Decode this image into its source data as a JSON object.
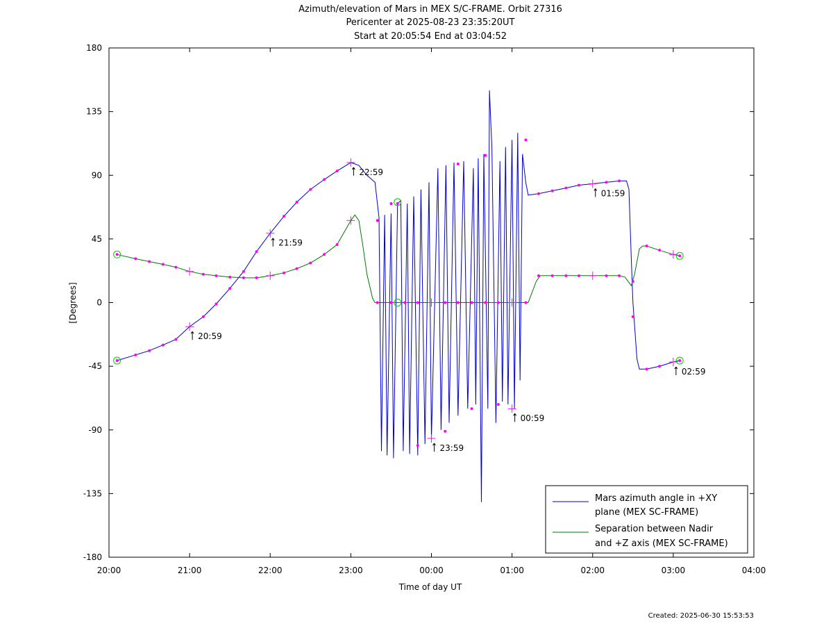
{
  "chart_data": {
    "type": "line",
    "title": "Azimuth/elevation of Mars in MEX S/C-FRAME.  Orbit 27316",
    "subtitle_lines": [
      "Pericenter at 2025-08-23 23:35:20UT",
      "Start at 20:05:54 End at 03:04:52"
    ],
    "xlabel": "Time of day UT",
    "ylabel": "[Degrees]",
    "footer": "Created: 2025-06-30 15:53:53",
    "x_unit": "hours since 20:00 UT",
    "xlim": [
      0,
      8
    ],
    "ylim": [
      -180,
      180
    ],
    "x_ticks": [
      {
        "v": 0,
        "label": "20:00"
      },
      {
        "v": 1,
        "label": "21:00"
      },
      {
        "v": 2,
        "label": "22:00"
      },
      {
        "v": 3,
        "label": "23:00"
      },
      {
        "v": 4,
        "label": "00:00"
      },
      {
        "v": 5,
        "label": "01:00"
      },
      {
        "v": 6,
        "label": "02:00"
      },
      {
        "v": 7,
        "label": "03:00"
      },
      {
        "v": 8,
        "label": "04:00"
      }
    ],
    "y_ticks": [
      {
        "v": 180,
        "label": "180"
      },
      {
        "v": 135,
        "label": "135"
      },
      {
        "v": 90,
        "label": "90"
      },
      {
        "v": 45,
        "label": "45"
      },
      {
        "v": 0,
        "label": "0"
      },
      {
        "v": -45,
        "label": "-45"
      },
      {
        "v": -90,
        "label": "-90"
      },
      {
        "v": -135,
        "label": "-135"
      },
      {
        "v": -180,
        "label": "-180"
      }
    ],
    "grid": false,
    "legend_position": "bottom-right",
    "marker_color": "#ff00ff",
    "circle_color": "#00cc00",
    "series": [
      {
        "name": "Mars azimuth angle in +XY plane (MEX SC-FRAME)",
        "legend_lines": [
          "Mars azimuth angle in +XY",
          "plane (MEX SC-FRAME)"
        ],
        "color": "#0000cc",
        "points": [
          [
            0.1,
            -41
          ],
          [
            0.33,
            -37
          ],
          [
            0.5,
            -34
          ],
          [
            0.67,
            -30
          ],
          [
            0.83,
            -26
          ],
          [
            1.0,
            -17
          ],
          [
            1.17,
            -10
          ],
          [
            1.33,
            -1
          ],
          [
            1.5,
            10
          ],
          [
            1.67,
            22
          ],
          [
            1.83,
            36
          ],
          [
            2.0,
            49
          ],
          [
            2.17,
            61
          ],
          [
            2.33,
            71
          ],
          [
            2.5,
            80
          ],
          [
            2.67,
            87
          ],
          [
            2.83,
            93
          ],
          [
            3.0,
            99
          ],
          [
            3.1,
            97
          ],
          [
            3.2,
            90
          ],
          [
            3.3,
            85
          ],
          [
            3.35,
            60
          ],
          [
            3.38,
            -105
          ],
          [
            3.42,
            62
          ],
          [
            3.45,
            -108
          ],
          [
            3.5,
            63
          ],
          [
            3.53,
            -110
          ],
          [
            3.58,
            70
          ],
          [
            3.62,
            72
          ],
          [
            3.65,
            -105
          ],
          [
            3.7,
            70
          ],
          [
            3.73,
            -107
          ],
          [
            3.78,
            75
          ],
          [
            3.83,
            -108
          ],
          [
            3.87,
            80
          ],
          [
            3.92,
            -100
          ],
          [
            3.97,
            85
          ],
          [
            4.0,
            -97
          ],
          [
            4.08,
            95
          ],
          [
            4.12,
            -90
          ],
          [
            4.18,
            97
          ],
          [
            4.22,
            -85
          ],
          [
            4.28,
            99
          ],
          [
            4.33,
            -80
          ],
          [
            4.4,
            100
          ],
          [
            4.45,
            -75
          ],
          [
            4.52,
            95
          ],
          [
            4.55,
            -72
          ],
          [
            4.58,
            102
          ],
          [
            4.62,
            -141
          ],
          [
            4.65,
            105
          ],
          [
            4.7,
            -75
          ],
          [
            4.72,
            150
          ],
          [
            4.75,
            110
          ],
          [
            4.8,
            -85
          ],
          [
            4.85,
            100
          ],
          [
            4.88,
            -70
          ],
          [
            4.92,
            110
          ],
          [
            4.95,
            -72
          ],
          [
            5.0,
            115
          ],
          [
            5.03,
            -75
          ],
          [
            5.07,
            120
          ],
          [
            5.1,
            -55
          ],
          [
            5.13,
            105
          ],
          [
            5.17,
            85
          ],
          [
            5.2,
            76
          ],
          [
            5.33,
            77
          ],
          [
            5.5,
            79
          ],
          [
            5.67,
            81
          ],
          [
            5.83,
            83
          ],
          [
            6.0,
            84
          ],
          [
            6.17,
            85
          ],
          [
            6.33,
            86
          ],
          [
            6.42,
            86
          ],
          [
            6.45,
            80
          ],
          [
            6.48,
            30
          ],
          [
            6.5,
            0
          ],
          [
            6.55,
            -40
          ],
          [
            6.58,
            -47
          ],
          [
            6.67,
            -47
          ],
          [
            6.83,
            -45
          ],
          [
            7.0,
            -42
          ],
          [
            7.08,
            -41
          ]
        ]
      },
      {
        "name": "Separation between Nadir and +Z axis (MEX SC-FRAME)",
        "legend_lines": [
          "Separation between Nadir",
          "and +Z axis (MEX SC-FRAME)"
        ],
        "color": "#007700",
        "points": [
          [
            0.1,
            34
          ],
          [
            0.33,
            31
          ],
          [
            0.5,
            29
          ],
          [
            0.67,
            27
          ],
          [
            0.83,
            25
          ],
          [
            1.0,
            22
          ],
          [
            1.17,
            20
          ],
          [
            1.33,
            19
          ],
          [
            1.5,
            18
          ],
          [
            1.67,
            17.5
          ],
          [
            1.83,
            17.5
          ],
          [
            2.0,
            19
          ],
          [
            2.17,
            21
          ],
          [
            2.33,
            24
          ],
          [
            2.5,
            28
          ],
          [
            2.67,
            34
          ],
          [
            2.83,
            41
          ],
          [
            3.0,
            58
          ],
          [
            3.05,
            62
          ],
          [
            3.1,
            58
          ],
          [
            3.15,
            40
          ],
          [
            3.2,
            20
          ],
          [
            3.27,
            3
          ],
          [
            3.3,
            0
          ],
          [
            3.5,
            0
          ],
          [
            4.0,
            0
          ],
          [
            4.5,
            0
          ],
          [
            5.0,
            0
          ],
          [
            5.2,
            0
          ],
          [
            5.3,
            15
          ],
          [
            5.35,
            19
          ],
          [
            5.5,
            19
          ],
          [
            5.67,
            19
          ],
          [
            5.83,
            19
          ],
          [
            6.0,
            19
          ],
          [
            6.17,
            19
          ],
          [
            6.33,
            19
          ],
          [
            6.4,
            18
          ],
          [
            6.48,
            12
          ],
          [
            6.52,
            20
          ],
          [
            6.58,
            38
          ],
          [
            6.62,
            40
          ],
          [
            6.67,
            40
          ],
          [
            6.83,
            37
          ],
          [
            7.0,
            34
          ],
          [
            7.08,
            33
          ]
        ]
      }
    ],
    "markers": [
      [
        0.1,
        -41
      ],
      [
        0.33,
        -37
      ],
      [
        0.5,
        -34
      ],
      [
        0.67,
        -30
      ],
      [
        0.83,
        -26
      ],
      [
        1.17,
        -10
      ],
      [
        1.33,
        -1
      ],
      [
        1.5,
        10
      ],
      [
        1.67,
        22
      ],
      [
        1.83,
        36
      ],
      [
        2.17,
        61
      ],
      [
        2.33,
        71
      ],
      [
        2.5,
        80
      ],
      [
        2.67,
        87
      ],
      [
        2.83,
        93
      ],
      [
        3.33,
        58
      ],
      [
        3.5,
        70
      ],
      [
        3.58,
        70
      ],
      [
        3.83,
        -101
      ],
      [
        4.17,
        -91
      ],
      [
        4.33,
        98
      ],
      [
        4.5,
        -75
      ],
      [
        4.67,
        104
      ],
      [
        4.83,
        -72
      ],
      [
        5.17,
        115
      ],
      [
        5.33,
        77
      ],
      [
        5.5,
        79
      ],
      [
        5.67,
        81
      ],
      [
        5.83,
        83
      ],
      [
        6.17,
        85
      ],
      [
        6.33,
        86
      ],
      [
        6.5,
        -10
      ],
      [
        6.5,
        15
      ],
      [
        6.67,
        -47
      ],
      [
        6.83,
        -45
      ],
      [
        7.08,
        -41
      ],
      [
        0.1,
        34
      ],
      [
        0.33,
        31
      ],
      [
        0.5,
        29
      ],
      [
        0.67,
        27
      ],
      [
        0.83,
        25
      ],
      [
        1.17,
        20
      ],
      [
        1.33,
        19
      ],
      [
        1.5,
        18
      ],
      [
        1.67,
        17.5
      ],
      [
        1.83,
        17.5
      ],
      [
        2.17,
        21
      ],
      [
        2.33,
        24
      ],
      [
        2.5,
        28
      ],
      [
        2.67,
        34
      ],
      [
        2.83,
        41
      ],
      [
        3.33,
        0
      ],
      [
        3.5,
        0
      ],
      [
        3.67,
        0
      ],
      [
        3.83,
        0
      ],
      [
        4.17,
        0
      ],
      [
        4.33,
        0
      ],
      [
        4.5,
        0
      ],
      [
        4.67,
        0
      ],
      [
        4.83,
        0
      ],
      [
        5.17,
        0
      ],
      [
        5.33,
        19
      ],
      [
        5.5,
        19
      ],
      [
        5.67,
        19
      ],
      [
        5.83,
        19
      ],
      [
        6.17,
        19
      ],
      [
        6.33,
        19
      ],
      [
        6.67,
        40
      ],
      [
        6.83,
        37
      ],
      [
        7.08,
        33
      ]
    ],
    "hour_crosses": [
      [
        1.0,
        -17
      ],
      [
        2.0,
        49
      ],
      [
        3.0,
        58
      ],
      [
        3.0,
        99
      ],
      [
        4.0,
        -96
      ],
      [
        5.0,
        -75
      ],
      [
        6.0,
        84
      ],
      [
        7.0,
        -42
      ],
      [
        1.0,
        22
      ],
      [
        2.0,
        19
      ],
      [
        4.0,
        0
      ],
      [
        5.0,
        0
      ],
      [
        6.0,
        19
      ],
      [
        7.0,
        34
      ]
    ],
    "circles": [
      [
        0.1,
        -41
      ],
      [
        0.1,
        34
      ],
      [
        3.58,
        0
      ],
      [
        3.58,
        71
      ],
      [
        7.08,
        -41
      ],
      [
        7.08,
        33
      ]
    ],
    "annotations": [
      {
        "x": 1.0,
        "y": -17,
        "label": "20:59"
      },
      {
        "x": 2.0,
        "y": 49,
        "label": "21:59"
      },
      {
        "x": 3.0,
        "y": 99,
        "label": "22:59"
      },
      {
        "x": 4.0,
        "y": -96,
        "label": "23:59"
      },
      {
        "x": 5.0,
        "y": -75,
        "label": "00:59"
      },
      {
        "x": 6.0,
        "y": 84,
        "label": "01:59"
      },
      {
        "x": 7.0,
        "y": -42,
        "label": "02:59"
      }
    ]
  }
}
